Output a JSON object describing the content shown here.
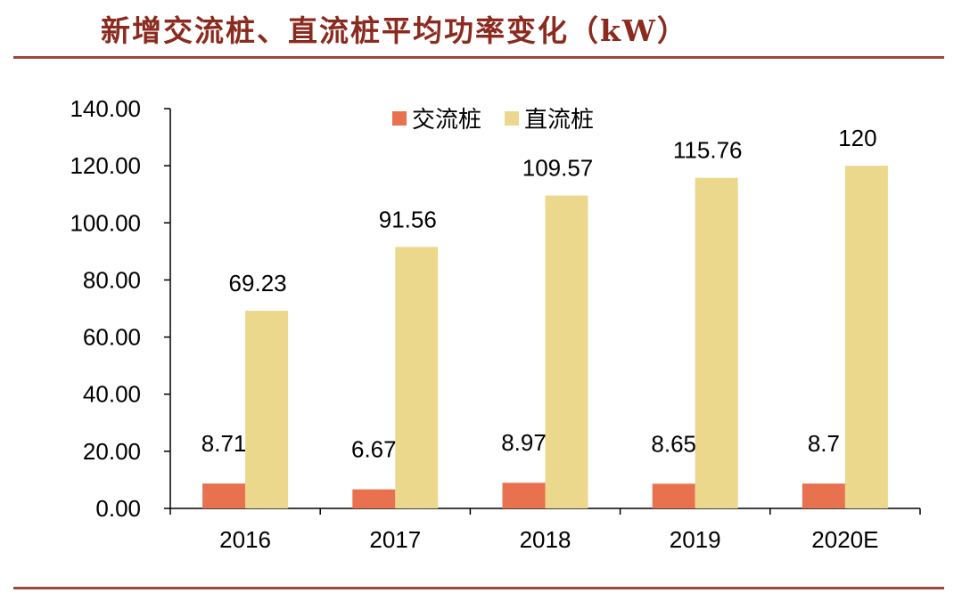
{
  "page": {
    "title": "新增交流桩、直流桩平均功率变化（kW）"
  },
  "colors": {
    "title": "#8B2A1E",
    "rule": "#A0473A",
    "ac": "#E8714F",
    "dc": "#ECD88C",
    "axis": "#000000"
  },
  "chart_data": {
    "type": "bar",
    "categories": [
      "2016",
      "2017",
      "2018",
      "2019",
      "2020E"
    ],
    "series": [
      {
        "name": "交流桩",
        "values": [
          8.71,
          6.67,
          8.97,
          8.65,
          8.7
        ],
        "labels": [
          "8.71",
          "6.67",
          "8.97",
          "8.65",
          "8.7"
        ]
      },
      {
        "name": "直流桩",
        "values": [
          69.23,
          91.56,
          109.57,
          115.76,
          120
        ],
        "labels": [
          "69.23",
          "91.56",
          "109.57",
          "115.76",
          "120"
        ]
      }
    ],
    "ylim": [
      0,
      140
    ],
    "yticks": [
      "0.00",
      "20.00",
      "40.00",
      "60.00",
      "80.00",
      "100.00",
      "120.00",
      "140.00"
    ],
    "grid": false,
    "legend_position": "top-center",
    "xlabel": "",
    "ylabel": ""
  }
}
